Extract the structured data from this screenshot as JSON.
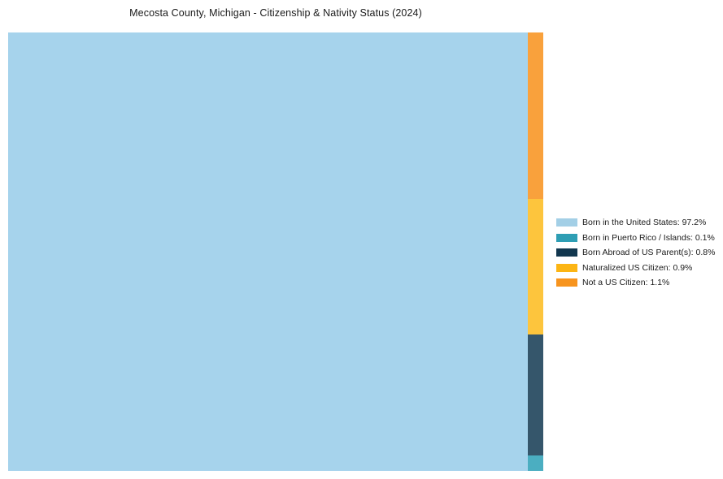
{
  "title": "Mecosta County, Michigan - Citizenship & Nativity Status (2024)",
  "chart_data": {
    "type": "treemap",
    "title": "Mecosta County, Michigan - Citizenship & Nativity Status (2024)",
    "unit": "%",
    "legend_position": "right",
    "grid": false,
    "items": [
      {
        "label": "Born in the United States",
        "value": 97.2,
        "legend_label": "Born in the United States: 97.2%",
        "legend_color": "#A3CFE6",
        "fill": "#A6D3EC"
      },
      {
        "label": "Born in Puerto Rico / Islands",
        "value": 0.1,
        "legend_label": "Born in Puerto Rico / Islands: 0.1%",
        "legend_color": "#2E9EB4",
        "fill": "#4BAEC1"
      },
      {
        "label": "Born Abroad of US Parent(s)",
        "value": 0.8,
        "legend_label": "Born Abroad of US Parent(s): 0.8%",
        "legend_color": "#12374F",
        "fill": "#35566B"
      },
      {
        "label": "Naturalized US Citizen",
        "value": 0.9,
        "legend_label": "Naturalized US Citizen: 0.9%",
        "legend_color": "#FCB514",
        "fill": "#FDC53D"
      },
      {
        "label": "Not a US Citizen",
        "value": 1.1,
        "legend_label": "Not a US Citizen: 1.1%",
        "legend_color": "#F7941E",
        "fill": "#F9A13C"
      }
    ]
  }
}
